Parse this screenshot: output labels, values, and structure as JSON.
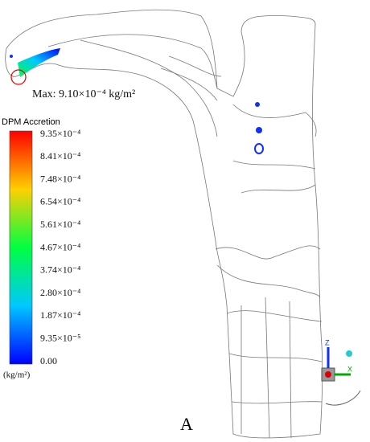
{
  "annotation": "Max: 9.10×10⁻⁴ kg/m²",
  "legend": {
    "title": "DPM Accretion",
    "labels": [
      "9.35×10⁻⁴",
      "8.41×10⁻⁴",
      "7.48×10⁻⁴",
      "6.54×10⁻⁴",
      "5.61×10⁻⁴",
      "4.67×10⁻⁴",
      "3.74×10⁻⁴",
      "2.80×10⁻⁴",
      "1.87×10⁻⁴",
      "9.35×10⁻⁵",
      "0.00"
    ],
    "unit": "(kg/m²)"
  },
  "axes": {
    "z": "Z",
    "x": "X"
  },
  "caption": "A"
}
